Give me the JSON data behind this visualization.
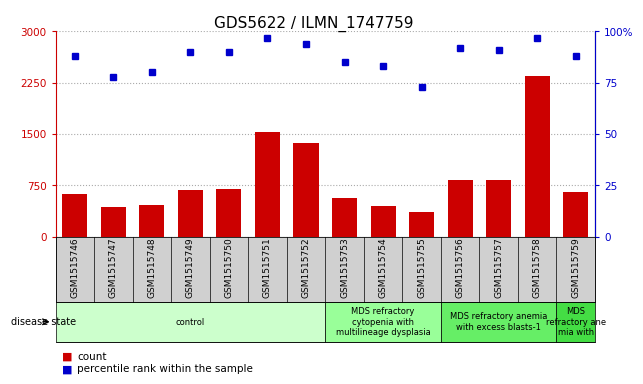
{
  "title": "GDS5622 / ILMN_1747759",
  "samples": [
    "GSM1515746",
    "GSM1515747",
    "GSM1515748",
    "GSM1515749",
    "GSM1515750",
    "GSM1515751",
    "GSM1515752",
    "GSM1515753",
    "GSM1515754",
    "GSM1515755",
    "GSM1515756",
    "GSM1515757",
    "GSM1515758",
    "GSM1515759"
  ],
  "counts": [
    620,
    430,
    460,
    680,
    700,
    1530,
    1370,
    560,
    440,
    360,
    820,
    820,
    2350,
    650
  ],
  "percentiles": [
    88,
    78,
    80,
    90,
    90,
    97,
    94,
    85,
    83,
    73,
    92,
    91,
    97,
    88
  ],
  "bar_color": "#cc0000",
  "dot_color": "#0000cc",
  "ylim_left": [
    0,
    3000
  ],
  "ylim_right": [
    0,
    100
  ],
  "yticks_left": [
    0,
    750,
    1500,
    2250,
    3000
  ],
  "ytick_labels_left": [
    "0",
    "750",
    "1500",
    "2250",
    "3000"
  ],
  "yticks_right": [
    0,
    25,
    50,
    75,
    100
  ],
  "ytick_labels_right": [
    "0",
    "25",
    "50",
    "75",
    "100%"
  ],
  "disease_groups": [
    {
      "label": "control",
      "start": 0,
      "end": 7,
      "color": "#ccffcc"
    },
    {
      "label": "MDS refractory\ncytopenia with\nmultilineage dysplasia",
      "start": 7,
      "end": 10,
      "color": "#99ff99"
    },
    {
      "label": "MDS refractory anemia\nwith excess blasts-1",
      "start": 10,
      "end": 13,
      "color": "#66ee66"
    },
    {
      "label": "MDS\nrefractory ane\nmia with",
      "start": 13,
      "end": 14,
      "color": "#44dd44"
    }
  ],
  "disease_state_label": "disease state",
  "legend_count_label": "count",
  "legend_percentile_label": "percentile rank within the sample",
  "background_color": "#ffffff",
  "grid_color": "#aaaaaa",
  "tick_color_left": "#cc0000",
  "tick_color_right": "#0000cc",
  "title_fontsize": 11,
  "tick_fontsize": 7.5,
  "sample_fontsize": 6.5,
  "ds_fontsize": 6.0,
  "legend_fontsize": 7.5
}
